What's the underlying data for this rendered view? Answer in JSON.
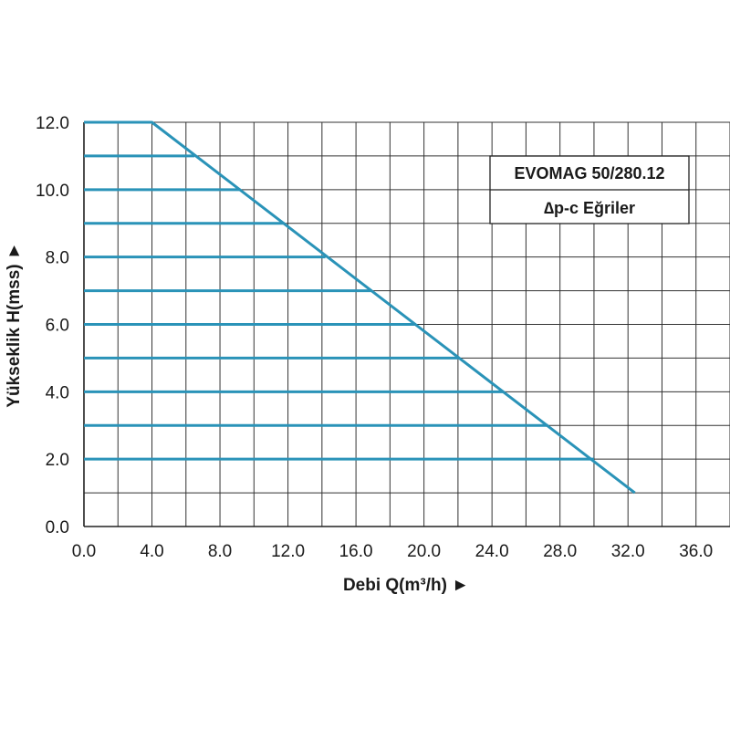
{
  "chart_data": {
    "type": "line",
    "title": "EVOMAG 50/280.12",
    "subtitle": "∆p-c Eğriler",
    "xlabel": "Debi Q(m³/h) ►",
    "ylabel": "Yükseklik H(mss) ►",
    "xlim": [
      0,
      38
    ],
    "ylim": [
      0,
      12
    ],
    "x_tick_labels": [
      "0.0",
      "4.0",
      "8.0",
      "12.0",
      "16.0",
      "20.0",
      "24.0",
      "28.0",
      "32.0",
      "36.0"
    ],
    "x_tick_values": [
      0,
      4,
      8,
      12,
      16,
      20,
      24,
      28,
      32,
      36
    ],
    "y_tick_labels": [
      "0.0",
      "2.0",
      "4.0",
      "6.0",
      "8.0",
      "10.0",
      "12.0"
    ],
    "y_tick_values": [
      0,
      2,
      4,
      6,
      8,
      10,
      12
    ],
    "grid": true,
    "legend_placement": "top-right",
    "line_color": "#2a93b8",
    "max_curve": {
      "x": [
        0,
        4.0,
        32.4
      ],
      "y": [
        12,
        12,
        1.0
      ]
    },
    "constant_pressure_lines": [
      {
        "h": 11,
        "q_max": 6.5
      },
      {
        "h": 10,
        "q_max": 9.2
      },
      {
        "h": 9,
        "q_max": 11.8
      },
      {
        "h": 8,
        "q_max": 14.2
      },
      {
        "h": 7,
        "q_max": 16.9
      },
      {
        "h": 6,
        "q_max": 19.5
      },
      {
        "h": 5,
        "q_max": 22.1
      },
      {
        "h": 4,
        "q_max": 24.7
      },
      {
        "h": 3,
        "q_max": 27.3
      },
      {
        "h": 2,
        "q_max": 30.0
      }
    ]
  }
}
